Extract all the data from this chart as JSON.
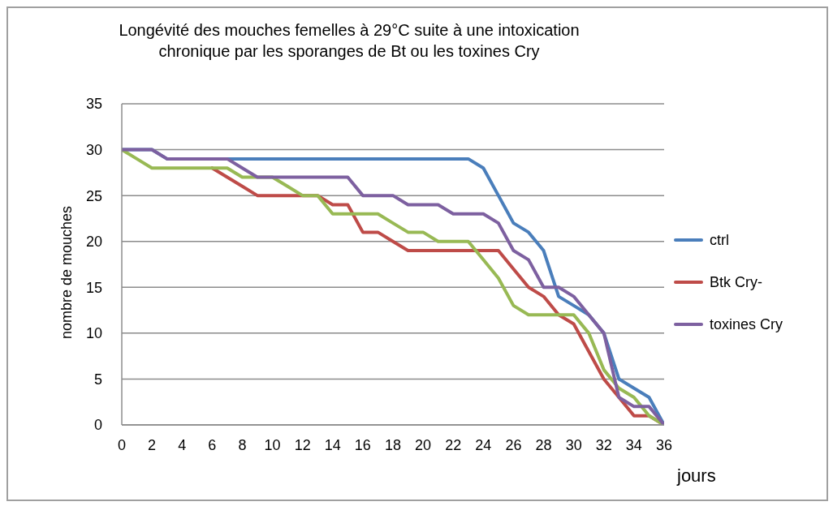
{
  "chart_data": {
    "type": "line",
    "title": "Longévité des mouches femelles à 29°C suite à une intoxication chronique par les sporanges de Bt ou les toxines Cry",
    "xlabel": "jours",
    "ylabel": "nombre de mouches",
    "x": [
      0,
      1,
      2,
      3,
      4,
      5,
      6,
      7,
      8,
      9,
      10,
      11,
      12,
      13,
      14,
      15,
      16,
      17,
      18,
      19,
      20,
      21,
      22,
      23,
      24,
      25,
      26,
      27,
      28,
      29,
      30,
      31,
      32,
      33,
      34,
      35,
      36
    ],
    "xlim": [
      0,
      36
    ],
    "xticks": [
      0,
      2,
      4,
      6,
      8,
      10,
      12,
      14,
      16,
      18,
      20,
      22,
      24,
      26,
      28,
      30,
      32,
      34,
      36
    ],
    "ylim": [
      0,
      35
    ],
    "yticks": [
      0,
      5,
      10,
      15,
      20,
      25,
      30,
      35
    ],
    "grid": "y",
    "legend": "right",
    "marker": "none",
    "line_style": "solid",
    "series": [
      {
        "name": "ctrl",
        "color": "#4a7ebb",
        "values": [
          30,
          30,
          30,
          29,
          29,
          29,
          29,
          29,
          29,
          29,
          29,
          29,
          29,
          29,
          29,
          29,
          29,
          29,
          29,
          29,
          29,
          29,
          29,
          29,
          28,
          25,
          22,
          21,
          19,
          14,
          13,
          12,
          10,
          5,
          4,
          3,
          0
        ]
      },
      {
        "name": "Btk Cry-",
        "color": "#be4b48",
        "values": [
          null,
          null,
          null,
          null,
          null,
          null,
          28,
          27,
          26,
          25,
          25,
          25,
          25,
          25,
          24,
          24,
          21,
          21,
          20,
          19,
          19,
          19,
          19,
          19,
          19,
          19,
          17,
          15,
          14,
          12,
          11,
          8,
          5,
          3,
          1,
          1,
          0
        ]
      },
      {
        "color": "#98b954",
        "values": [
          30,
          29,
          28,
          28,
          28,
          28,
          28,
          28,
          27,
          27,
          27,
          26,
          25,
          25,
          23,
          23,
          23,
          23,
          22,
          21,
          21,
          20,
          20,
          20,
          18,
          16,
          13,
          12,
          12,
          12,
          12,
          10,
          6,
          4,
          3,
          1,
          0
        ]
      },
      {
        "name": "toxines Cry",
        "color": "#7d60a0",
        "values": [
          30,
          30,
          30,
          29,
          29,
          29,
          29,
          29,
          28,
          27,
          27,
          27,
          27,
          27,
          27,
          27,
          25,
          25,
          25,
          24,
          24,
          24,
          23,
          23,
          23,
          22,
          19,
          18,
          15,
          15,
          14,
          12,
          10,
          3,
          2,
          2,
          0
        ]
      }
    ]
  }
}
